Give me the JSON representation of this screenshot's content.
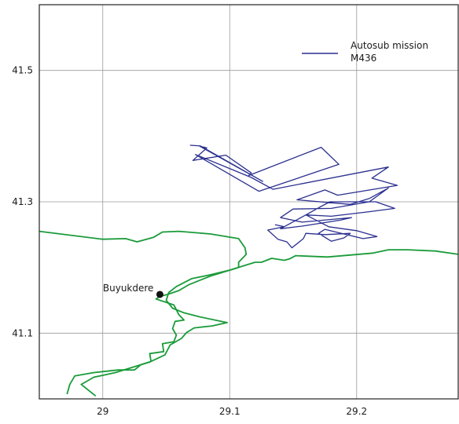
{
  "chart_data": {
    "type": "line",
    "title": "",
    "xlabel": "",
    "ylabel": "",
    "xlim": [
      28.95,
      29.28
    ],
    "ylim": [
      41.0,
      41.6
    ],
    "xticks": [
      {
        "value": 29.0,
        "label": "29"
      },
      {
        "value": 29.1,
        "label": "29.1"
      },
      {
        "value": 29.2,
        "label": "29.2"
      }
    ],
    "yticks": [
      {
        "value": 41.1,
        "label": "41.1"
      },
      {
        "value": 41.3,
        "label": "41.3"
      },
      {
        "value": 41.5,
        "label": "41.5"
      }
    ],
    "grid": true,
    "legend": {
      "placement": "top-right",
      "entries": [
        "Autosub mission",
        "M436"
      ]
    },
    "colors": {
      "track": "#2a2f8f",
      "coast": "#1a9b3a",
      "grid": "#9a9a9a",
      "frame": "#222222",
      "point": "#111111"
    },
    "places": [
      {
        "name": "Buyukdere",
        "lon": 29.045,
        "lat": 41.159
      }
    ],
    "series": [
      {
        "name": "Autosub mission M436",
        "role": "track",
        "points": [
          [
            29.069,
            41.386
          ],
          [
            29.077,
            41.385
          ],
          [
            29.126,
            41.331
          ],
          [
            29.076,
            41.385
          ],
          [
            29.082,
            41.382
          ],
          [
            29.071,
            41.363
          ],
          [
            29.097,
            41.371
          ],
          [
            29.117,
            41.344
          ],
          [
            29.115,
            41.34
          ],
          [
            29.172,
            41.383
          ],
          [
            29.186,
            41.357
          ],
          [
            29.123,
            41.316
          ],
          [
            29.073,
            41.372
          ],
          [
            29.117,
            41.337
          ],
          [
            29.134,
            41.319
          ],
          [
            29.225,
            41.353
          ],
          [
            29.212,
            41.336
          ],
          [
            29.232,
            41.325
          ],
          [
            29.185,
            41.31
          ],
          [
            29.175,
            41.318
          ],
          [
            29.153,
            41.303
          ],
          [
            29.195,
            41.296
          ],
          [
            29.21,
            41.305
          ],
          [
            29.225,
            41.321
          ],
          [
            29.21,
            41.3
          ],
          [
            29.18,
            41.29
          ],
          [
            29.15,
            41.289
          ],
          [
            29.14,
            41.276
          ],
          [
            29.157,
            41.269
          ],
          [
            29.196,
            41.276
          ],
          [
            29.187,
            41.272
          ],
          [
            29.157,
            41.263
          ],
          [
            29.14,
            41.259
          ],
          [
            29.158,
            41.278
          ],
          [
            29.173,
            41.294
          ],
          [
            29.179,
            41.3
          ],
          [
            29.215,
            41.3
          ],
          [
            29.23,
            41.29
          ],
          [
            29.21,
            41.285
          ],
          [
            29.18,
            41.278
          ],
          [
            29.16,
            41.28
          ],
          [
            29.178,
            41.262
          ],
          [
            29.2,
            41.256
          ],
          [
            29.216,
            41.247
          ],
          [
            29.205,
            41.244
          ],
          [
            29.175,
            41.258
          ],
          [
            29.17,
            41.252
          ],
          [
            29.18,
            41.24
          ],
          [
            29.19,
            41.245
          ],
          [
            29.195,
            41.252
          ],
          [
            29.175,
            41.25
          ],
          [
            29.16,
            41.252
          ],
          [
            29.158,
            41.244
          ],
          [
            29.149,
            41.23
          ],
          [
            29.145,
            41.239
          ],
          [
            29.138,
            41.243
          ],
          [
            29.13,
            41.257
          ],
          [
            29.143,
            41.262
          ],
          [
            29.136,
            41.265
          ]
        ]
      },
      {
        "name": "Coastline north-west",
        "role": "coast",
        "points": [
          [
            28.95,
            41.255
          ],
          [
            29.0,
            41.243
          ],
          [
            29.018,
            41.244
          ],
          [
            29.027,
            41.239
          ],
          [
            29.04,
            41.246
          ],
          [
            29.047,
            41.254
          ],
          [
            29.06,
            41.255
          ],
          [
            29.085,
            41.251
          ],
          [
            29.107,
            41.244
          ],
          [
            29.112,
            41.23
          ],
          [
            29.113,
            41.22
          ],
          [
            29.107,
            41.208
          ],
          [
            29.107,
            41.2
          ],
          [
            29.085,
            41.187
          ],
          [
            29.068,
            41.174
          ],
          [
            29.06,
            41.165
          ],
          [
            29.051,
            41.159
          ],
          [
            29.045,
            41.156
          ],
          [
            29.042,
            41.152
          ],
          [
            29.056,
            41.143
          ],
          [
            29.06,
            41.128
          ],
          [
            29.064,
            41.12
          ],
          [
            29.057,
            41.118
          ],
          [
            29.055,
            41.107
          ],
          [
            29.058,
            41.097
          ],
          [
            29.056,
            41.087
          ],
          [
            29.047,
            41.084
          ],
          [
            29.048,
            41.072
          ],
          [
            29.037,
            41.069
          ],
          [
            29.038,
            41.057
          ],
          [
            29.03,
            41.052
          ],
          [
            29.025,
            41.044
          ],
          [
            29.012,
            41.044
          ],
          [
            28.993,
            41.04
          ],
          [
            28.978,
            41.035
          ],
          [
            28.974,
            41.022
          ],
          [
            28.972,
            41.008
          ]
        ]
      },
      {
        "name": "Coastline south-east",
        "role": "coast",
        "points": [
          [
            29.28,
            41.22
          ],
          [
            29.262,
            41.225
          ],
          [
            29.24,
            41.227
          ],
          [
            29.225,
            41.227
          ],
          [
            29.213,
            41.222
          ],
          [
            29.195,
            41.219
          ],
          [
            29.177,
            41.216
          ],
          [
            29.152,
            41.218
          ],
          [
            29.147,
            41.213
          ],
          [
            29.143,
            41.211
          ],
          [
            29.133,
            41.214
          ],
          [
            29.125,
            41.208
          ],
          [
            29.12,
            41.208
          ],
          [
            29.11,
            41.202
          ],
          [
            29.1,
            41.196
          ],
          [
            29.085,
            41.189
          ],
          [
            29.07,
            41.183
          ],
          [
            29.058,
            41.171
          ],
          [
            29.052,
            41.162
          ],
          [
            29.05,
            41.15
          ],
          [
            29.055,
            41.138
          ],
          [
            29.064,
            41.131
          ],
          [
            29.076,
            41.125
          ],
          [
            29.098,
            41.116
          ],
          [
            29.086,
            41.111
          ],
          [
            29.072,
            41.108
          ],
          [
            29.066,
            41.101
          ],
          [
            29.062,
            41.092
          ],
          [
            29.053,
            41.082
          ],
          [
            29.049,
            41.067
          ],
          [
            29.037,
            41.056
          ],
          [
            29.025,
            41.049
          ],
          [
            29.01,
            41.04
          ],
          [
            28.993,
            41.033
          ],
          [
            28.983,
            41.022
          ],
          [
            28.994,
            41.005
          ]
        ]
      }
    ]
  }
}
